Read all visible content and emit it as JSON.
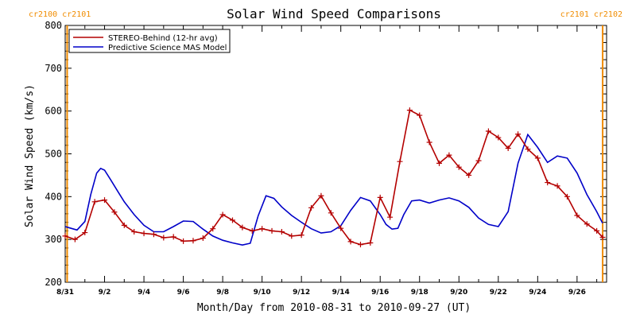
{
  "chart_data": {
    "type": "line",
    "title": "Solar Wind Speed Comparisons",
    "xlabel": "Month/Day from 2010-08-31 to 2010-09-27 (UT)",
    "ylabel": "Solar Wind Speed (km/s)",
    "xlim": [
      0,
      27.5
    ],
    "ylim": [
      200,
      800
    ],
    "yticks": [
      200,
      300,
      400,
      500,
      600,
      700,
      800
    ],
    "xticks": [
      {
        "x": 0,
        "label": "8/31"
      },
      {
        "x": 2,
        "label": "9/2"
      },
      {
        "x": 4,
        "label": "9/4"
      },
      {
        "x": 6,
        "label": "9/6"
      },
      {
        "x": 8,
        "label": "9/8"
      },
      {
        "x": 10,
        "label": "9/10"
      },
      {
        "x": 12,
        "label": "9/12"
      },
      {
        "x": 14,
        "label": "9/14"
      },
      {
        "x": 16,
        "label": "9/16"
      },
      {
        "x": 18,
        "label": "9/18"
      },
      {
        "x": 20,
        "label": "9/20"
      },
      {
        "x": 22,
        "label": "9/22"
      },
      {
        "x": 24,
        "label": "9/24"
      },
      {
        "x": 26,
        "label": "9/26"
      }
    ],
    "carrington_markers": [
      {
        "x": 0.1,
        "label": "cr2100 cr2101",
        "side": "left"
      },
      {
        "x": 27.3,
        "label": "cr2101 cr2102",
        "side": "right"
      }
    ],
    "legend_position": "top-left",
    "grid": false,
    "series": [
      {
        "name": "STEREO-Behind (12-hr avg)",
        "color": "#b40000",
        "marker": "plus",
        "x": [
          0,
          0.5,
          1,
          1.5,
          2,
          2.5,
          3,
          3.5,
          4,
          4.5,
          5,
          5.5,
          6,
          6.5,
          7,
          7.5,
          8,
          8.5,
          9,
          9.5,
          10,
          10.5,
          11,
          11.5,
          12,
          12.5,
          13,
          13.5,
          14,
          14.5,
          15,
          15.5,
          16,
          16.5,
          17,
          17.5,
          18,
          18.5,
          19,
          19.5,
          20,
          20.5,
          21,
          21.5,
          22,
          22.5,
          23,
          23.5,
          24,
          24.5,
          25,
          25.5,
          26,
          26.5,
          27,
          27.3
        ],
        "y": [
          308,
          300,
          316,
          388,
          392,
          364,
          333,
          318,
          314,
          312,
          304,
          306,
          296,
          297,
          303,
          325,
          358,
          345,
          328,
          320,
          325,
          320,
          318,
          308,
          310,
          374,
          402,
          362,
          326,
          295,
          288,
          292,
          398,
          352,
          482,
          602,
          590,
          527,
          478,
          497,
          469,
          450,
          484,
          553,
          538,
          513,
          546,
          511,
          490,
          433,
          425,
          400,
          356,
          336,
          320,
          305
        ]
      },
      {
        "name": "Predictive Science MAS Model",
        "color": "#0000c8",
        "marker": "none",
        "x": [
          0,
          0.3,
          0.6,
          1,
          1.3,
          1.6,
          1.8,
          2,
          2.3,
          2.7,
          3,
          3.5,
          4,
          4.5,
          5,
          5.5,
          6,
          6.5,
          7,
          7.5,
          8,
          8.5,
          9,
          9.4,
          9.8,
          10.2,
          10.6,
          11,
          11.5,
          12,
          12.5,
          13,
          13.5,
          14,
          14.5,
          15,
          15.5,
          16,
          16.3,
          16.6,
          16.9,
          17.2,
          17.6,
          18,
          18.5,
          19,
          19.5,
          20,
          20.5,
          21,
          21.5,
          22,
          22.5,
          23,
          23.5,
          24,
          24.5,
          25,
          25.5,
          26,
          26.5,
          27,
          27.3
        ],
        "y": [
          330,
          326,
          322,
          342,
          405,
          455,
          466,
          462,
          440,
          410,
          388,
          358,
          333,
          318,
          318,
          330,
          343,
          342,
          324,
          308,
          298,
          292,
          287,
          291,
          355,
          402,
          396,
          376,
          356,
          340,
          325,
          315,
          318,
          332,
          368,
          398,
          390,
          358,
          335,
          324,
          326,
          358,
          390,
          392,
          385,
          392,
          397,
          390,
          375,
          350,
          335,
          330,
          365,
          478,
          545,
          515,
          480,
          495,
          490,
          455,
          405,
          365,
          338
        ]
      }
    ]
  }
}
